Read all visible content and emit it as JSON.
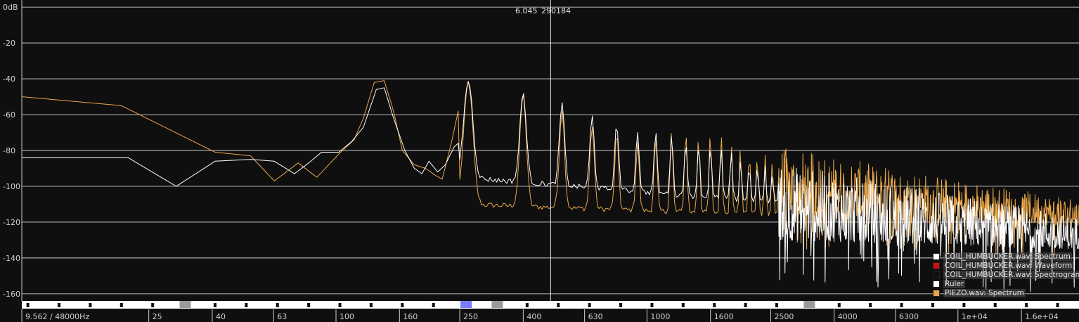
{
  "chart_data": {
    "type": "line",
    "ylabel_unit": "dB",
    "y_ticks": [
      "0dB",
      "-20",
      "-40",
      "-60",
      "-80",
      "-100",
      "-120",
      "-140",
      "-160"
    ],
    "y_tick_values": [
      0,
      -20,
      -40,
      -60,
      -80,
      -100,
      -120,
      -140,
      -160
    ],
    "ylim": [
      -164,
      4
    ],
    "x_scale": "log",
    "x_ticks": [
      "25",
      "40",
      "63",
      "100",
      "160",
      "250",
      "400",
      "630",
      "1000",
      "1600",
      "2500",
      "4000",
      "6300",
      "1e+04",
      "1.6e+04"
    ],
    "x_tick_values": [
      25,
      40,
      63,
      100,
      160,
      250,
      400,
      630,
      1000,
      1600,
      2500,
      4000,
      6300,
      10000,
      16000
    ],
    "xlim": [
      9.562,
      24000
    ],
    "resolution_label": "9.562 / 48000Hz",
    "fundamental_hz": 130.5,
    "cursor": {
      "x_value": "6.045",
      "y_value": "290184",
      "freq_hz": 480
    },
    "series": [
      {
        "name": "COIL_HUMBUCKER.wav: Spectrum",
        "color": "#ffffff",
        "low_points": [
          [
            9.6,
            -84
          ],
          [
            21,
            -84
          ],
          [
            30,
            -100
          ],
          [
            40,
            -86
          ],
          [
            52,
            -85
          ],
          [
            62,
            -86
          ],
          [
            72,
            -93
          ],
          [
            80,
            -87
          ],
          [
            88,
            -81
          ],
          [
            100,
            -81
          ],
          [
            110,
            -75
          ],
          [
            120,
            -67
          ],
          [
            132,
            -46
          ],
          [
            140,
            -45
          ],
          [
            150,
            -62
          ],
          [
            163,
            -80
          ],
          [
            175,
            -90
          ],
          [
            185,
            -93
          ],
          [
            195,
            -86
          ],
          [
            208,
            -92
          ],
          [
            220,
            -88
          ],
          [
            235,
            -78
          ],
          [
            242,
            -76
          ]
        ],
        "harmonic_peaks": [
          -41,
          -48,
          -54,
          -61,
          -65,
          -69,
          -70,
          -71,
          -74,
          -76,
          -77,
          -79,
          -81,
          -84,
          -86,
          -88,
          -90,
          -92,
          -95,
          -97
        ],
        "valley_base": -95,
        "valley_slope": -14,
        "noise_floor_hi": -130,
        "noise_depth": 25
      },
      {
        "name": "PIEZO.wav: Spectrum",
        "color": "#e8a64a",
        "low_points": [
          [
            9.6,
            -50
          ],
          [
            20,
            -55
          ],
          [
            40,
            -81
          ],
          [
            52,
            -83
          ],
          [
            62,
            -97
          ],
          [
            74,
            -87
          ],
          [
            85,
            -95
          ],
          [
            100,
            -82
          ],
          [
            112,
            -74
          ],
          [
            120,
            -62
          ],
          [
            130,
            -42
          ],
          [
            140,
            -41
          ],
          [
            150,
            -58
          ],
          [
            160,
            -80
          ],
          [
            175,
            -88
          ],
          [
            190,
            -90
          ],
          [
            205,
            -94
          ],
          [
            215,
            -96
          ],
          [
            230,
            -76
          ],
          [
            242,
            -58
          ]
        ],
        "harmonic_peaks": [
          -42,
          -49,
          -57,
          -66,
          -71,
          -75,
          -73,
          -70,
          -68,
          -71,
          -70,
          -70,
          -74,
          -76,
          -78,
          -80,
          -82,
          -84,
          -86,
          -88
        ],
        "valley_base": -110,
        "valley_slope": -6,
        "noise_floor_hi": -117,
        "noise_depth": 18
      }
    ]
  },
  "legend": [
    {
      "label": "COIL_HUMBUCKER.wav: Spectrum",
      "color": "#ffffff"
    },
    {
      "label": "COIL_HUMBUCKER.wav: Waveform",
      "color": "#cc1010"
    },
    {
      "label": "COIL_HUMBUCKER.wav: Spectrogram",
      "color": "#0f0f0f"
    },
    {
      "label": "Ruler",
      "color": "#ffffff"
    },
    {
      "label": "PIEZO.wav: Spectrum",
      "color": "#e8a64a"
    }
  ],
  "ruler": {
    "highlight_color": "#7a7aff",
    "gray_color": "#9a9a9a"
  }
}
